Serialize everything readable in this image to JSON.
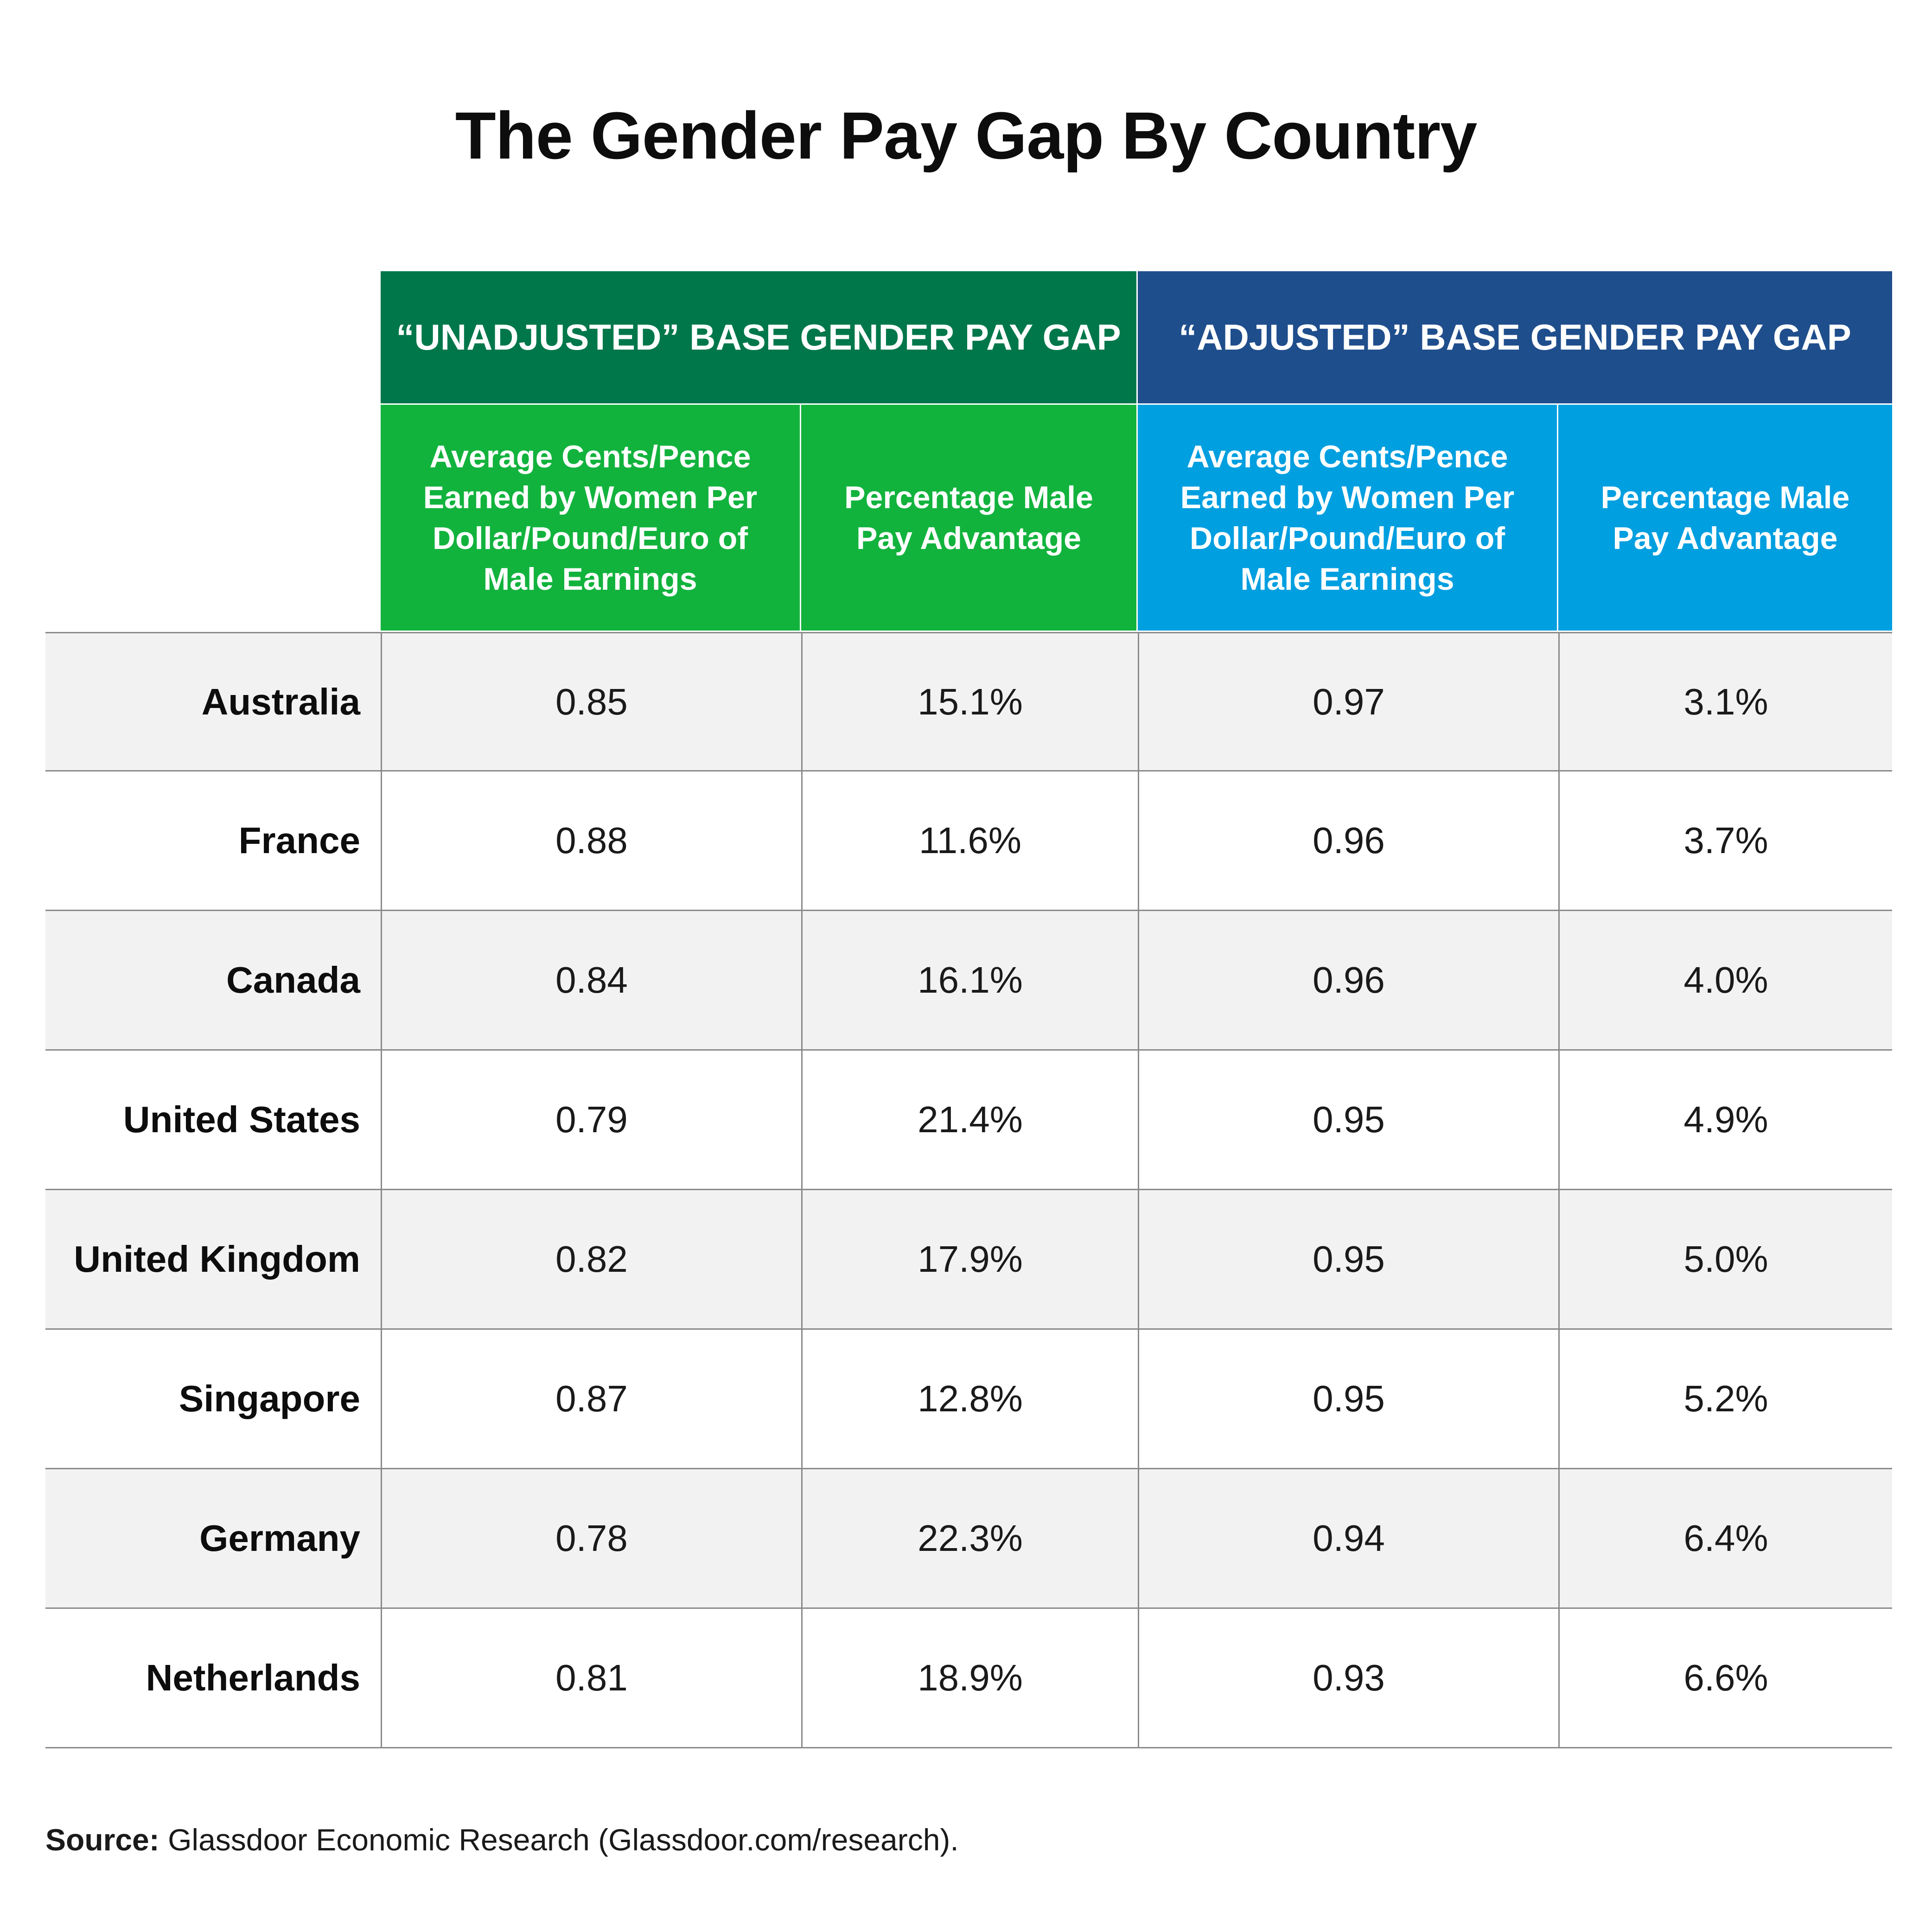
{
  "chart_data": {
    "type": "table",
    "title": "The Gender Pay Gap By Country",
    "group_headers": [
      "“UNADJUSTED” BASE GENDER PAY GAP",
      "“ADJUSTED” BASE GENDER PAY GAP"
    ],
    "column_headers": [
      "Average Cents/Pence Earned by Women Per Dollar/Pound/Euro of Male Earnings",
      "Percentage Male Pay Advantage",
      "Average Cents/Pence Earned by Women Per Dollar/Pound/Euro of Male Earnings",
      "Percentage Male Pay Advantage"
    ],
    "rows": [
      {
        "country": "Australia",
        "unadjusted_cents": "0.85",
        "unadjusted_pct": "15.1%",
        "adjusted_cents": "0.97",
        "adjusted_pct": "3.1%"
      },
      {
        "country": "France",
        "unadjusted_cents": "0.88",
        "unadjusted_pct": "11.6%",
        "adjusted_cents": "0.96",
        "adjusted_pct": "3.7%"
      },
      {
        "country": "Canada",
        "unadjusted_cents": "0.84",
        "unadjusted_pct": "16.1%",
        "adjusted_cents": "0.96",
        "adjusted_pct": "4.0%"
      },
      {
        "country": "United States",
        "unadjusted_cents": "0.79",
        "unadjusted_pct": "21.4%",
        "adjusted_cents": "0.95",
        "adjusted_pct": "4.9%"
      },
      {
        "country": "United Kingdom",
        "unadjusted_cents": "0.82",
        "unadjusted_pct": "17.9%",
        "adjusted_cents": "0.95",
        "adjusted_pct": "5.0%"
      },
      {
        "country": "Singapore",
        "unadjusted_cents": "0.87",
        "unadjusted_pct": "12.8%",
        "adjusted_cents": "0.95",
        "adjusted_pct": "5.2%"
      },
      {
        "country": "Germany",
        "unadjusted_cents": "0.78",
        "unadjusted_pct": "22.3%",
        "adjusted_cents": "0.94",
        "adjusted_pct": "6.4%"
      },
      {
        "country": "Netherlands",
        "unadjusted_cents": "0.81",
        "unadjusted_pct": "18.9%",
        "adjusted_cents": "0.93",
        "adjusted_pct": "6.6%"
      }
    ],
    "source_label": "Source:",
    "source_text": "Glassdoor Economic Research (Glassdoor.com/research).",
    "colors": {
      "unadjusted_group": "#00774a",
      "unadjusted_sub": "#12b33d",
      "adjusted_group": "#1f4e8c",
      "adjusted_sub": "#009fe0",
      "row_shade": "#f2f2f2"
    }
  }
}
